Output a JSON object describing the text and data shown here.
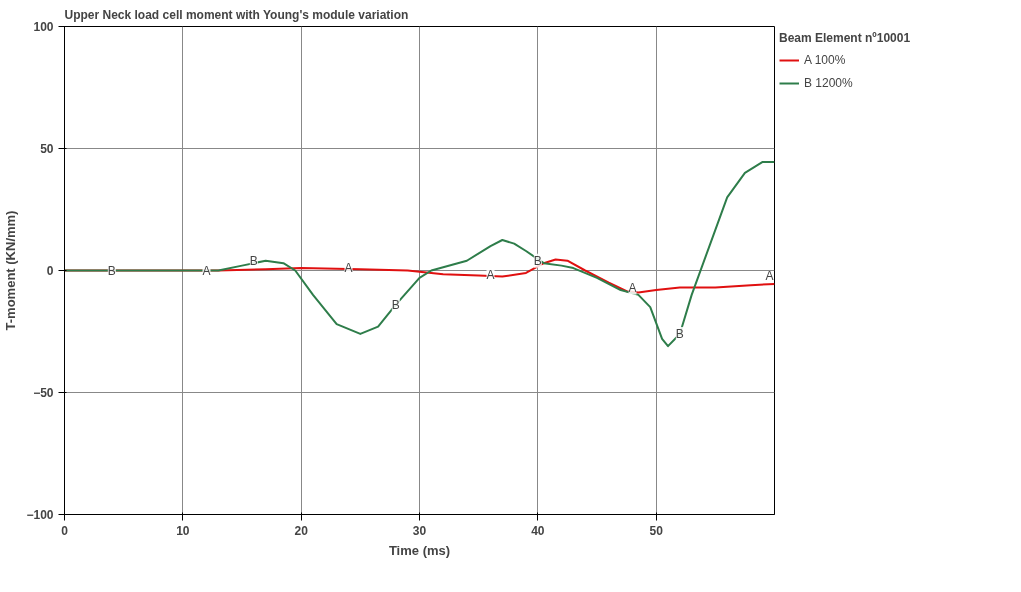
{
  "chart_data": {
    "type": "line",
    "title": "Upper Neck load cell moment with Young's module variation",
    "xlabel": "Time (ms)",
    "ylabel": "T-moment (KN/mm)",
    "legend_title": "Beam Element nº10001",
    "legend": "right",
    "grid": true,
    "xlim": [
      0,
      60
    ],
    "xticks": [
      0,
      10,
      20,
      30,
      40,
      50
    ],
    "ylim": [
      -100,
      100
    ],
    "yticks": [
      -100,
      -50,
      0,
      50,
      100
    ],
    "series": [
      {
        "name": "A 100%",
        "color": "#e01010",
        "x": [
          0,
          13,
          17,
          20,
          25,
          29,
          32,
          35,
          37,
          39,
          40.5,
          41.5,
          42.5,
          44,
          46,
          47.5,
          48.5,
          50,
          52,
          55,
          58,
          60
        ],
        "values": [
          0,
          0,
          0.5,
          1,
          0.5,
          0,
          -1.5,
          -2,
          -2.5,
          -1,
          3,
          4.5,
          4,
          0,
          -5,
          -8.5,
          -9,
          -8,
          -7,
          -7,
          -6,
          -5.5
        ]
      },
      {
        "name": "B 1200%",
        "color": "#2e7d4a",
        "x": [
          0,
          13,
          15,
          17,
          18.5,
          19.5,
          21,
          23,
          25,
          26.5,
          28,
          30,
          31,
          34,
          36,
          37,
          38,
          39,
          40.5,
          42,
          43,
          45,
          47,
          48.5,
          49.5,
          50.5,
          51,
          52,
          53,
          54.5,
          56,
          57.5,
          59,
          60
        ],
        "values": [
          0,
          0,
          2,
          4,
          3,
          0,
          -10,
          -22,
          -26,
          -23,
          -14,
          -3,
          0,
          4,
          10,
          12.5,
          11,
          8,
          3,
          2,
          1,
          -3,
          -8,
          -10,
          -15,
          -28,
          -31,
          -26,
          -10,
          10,
          30,
          40,
          44.5,
          44.5
        ]
      }
    ],
    "annotations": [
      {
        "text": "B",
        "x": 4,
        "y": 0
      },
      {
        "text": "A",
        "x": 12,
        "y": 0
      },
      {
        "text": "B",
        "x": 16,
        "y": 4
      },
      {
        "text": "A",
        "x": 24,
        "y": 1
      },
      {
        "text": "B",
        "x": 28,
        "y": -14
      },
      {
        "text": "A",
        "x": 36,
        "y": -2
      },
      {
        "text": "B",
        "x": 40,
        "y": 4
      },
      {
        "text": "A",
        "x": 48,
        "y": -7
      },
      {
        "text": "B",
        "x": 52,
        "y": -26
      },
      {
        "text": "A",
        "x": 60,
        "y": -5
      }
    ]
  }
}
